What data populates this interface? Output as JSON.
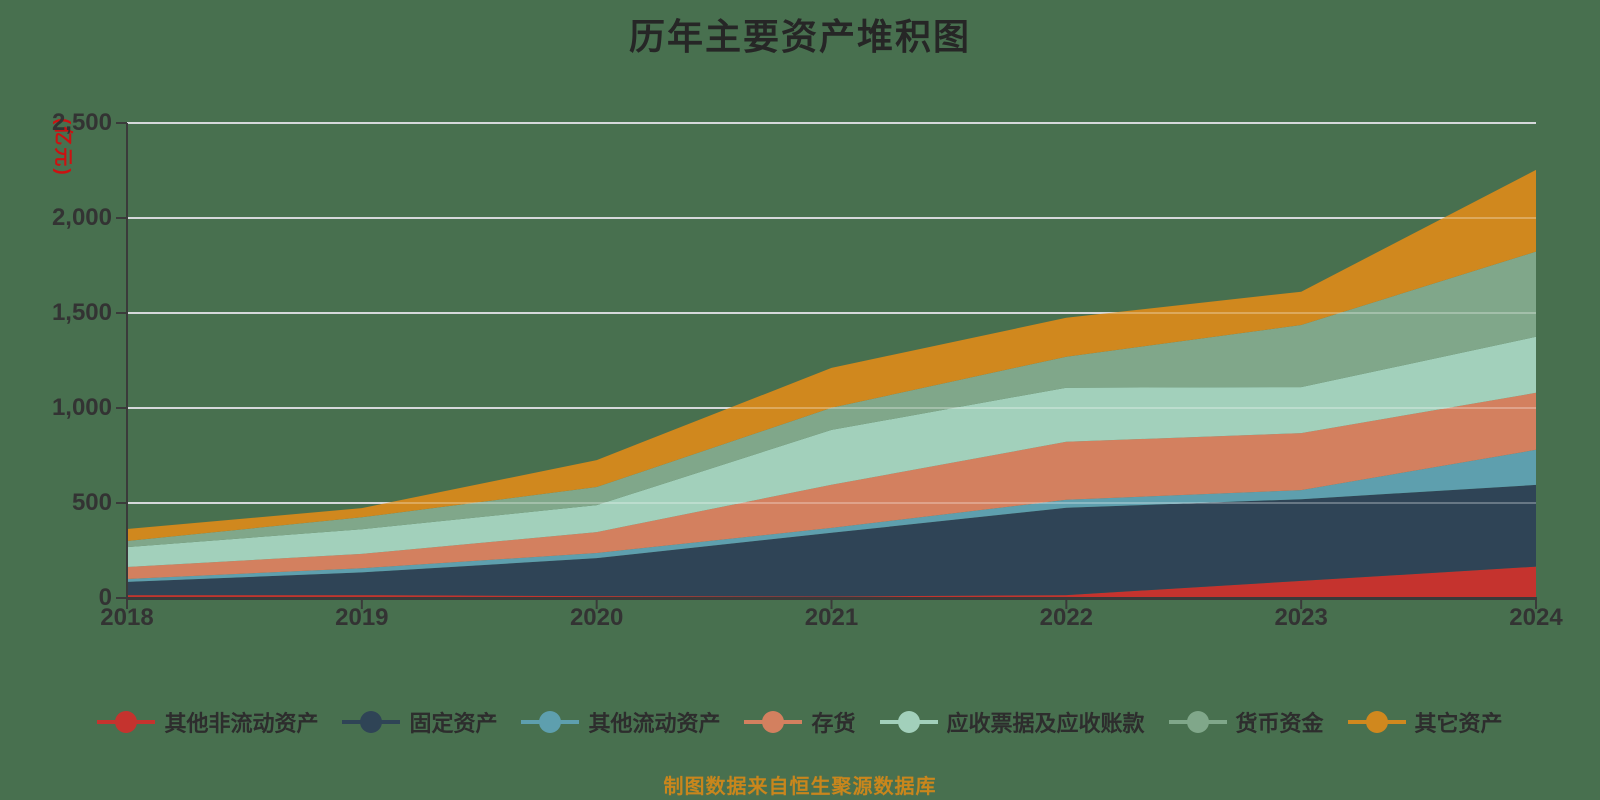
{
  "title": "历年主要资产堆积图",
  "footer_note": "制图数据来自恒生聚源数据库",
  "y_axis": {
    "unit_label": "(亿元)",
    "tick_labels": [
      "0",
      "500",
      "1,000",
      "1,500",
      "2,000",
      "2,500"
    ],
    "tick_values": [
      0,
      500,
      1000,
      1500,
      2000,
      2500
    ]
  },
  "x_axis": {
    "tick_labels": [
      "2018",
      "2019",
      "2020",
      "2021",
      "2022",
      "2023",
      "2024"
    ]
  },
  "colors": {
    "background": "#48704f",
    "gridline": "#c6cacd",
    "axis": "#3a3a3a",
    "title_text": "#262626",
    "tick_text": "#333333",
    "unit_text": "#cc1111",
    "legend_text": "#2d2d2d",
    "footer_text": "#c9861c"
  },
  "chart_data": {
    "type": "area",
    "stacked": true,
    "title": "历年主要资产堆积图",
    "x": [
      2018,
      2019,
      2020,
      2021,
      2022,
      2023,
      2024
    ],
    "xlabel": "",
    "ylabel": "(亿元)",
    "ylim": [
      0,
      2500
    ],
    "grid": true,
    "legend_position": "bottom",
    "series": [
      {
        "name": "其他非流动资产",
        "color": "#c5332e",
        "values": [
          15,
          15,
          10,
          8,
          15,
          90,
          165
        ]
      },
      {
        "name": "固定资产",
        "color": "#2f4456",
        "values": [
          70,
          120,
          200,
          335,
          460,
          430,
          430
        ]
      },
      {
        "name": "其他流动资产",
        "color": "#5e9fae",
        "values": [
          15,
          22,
          27,
          26,
          42,
          48,
          185
        ]
      },
      {
        "name": "存货",
        "color": "#d3805f",
        "values": [
          63,
          75,
          110,
          227,
          305,
          300,
          300
        ]
      },
      {
        "name": "应收票据及应收账款",
        "color": "#a2d0bb",
        "values": [
          105,
          130,
          142,
          289,
          285,
          242,
          295
        ]
      },
      {
        "name": "货币资金",
        "color": "#80a78a",
        "values": [
          32,
          63,
          95,
          116,
          163,
          327,
          448
        ]
      },
      {
        "name": "其它资产",
        "color": "#d0881e",
        "values": [
          63,
          48,
          142,
          210,
          205,
          175,
          430
        ]
      }
    ]
  }
}
